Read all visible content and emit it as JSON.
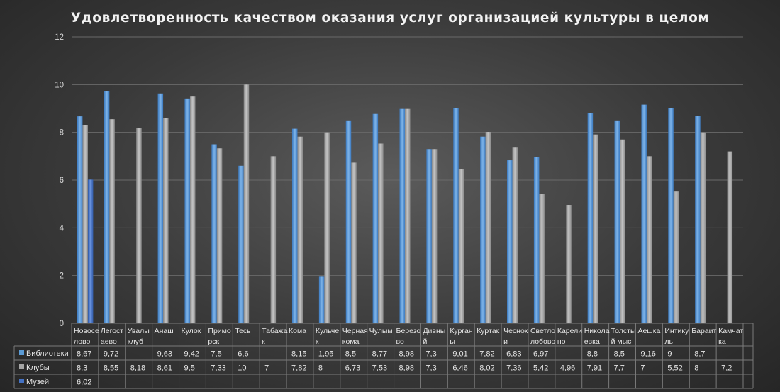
{
  "chart_data": {
    "type": "bar",
    "title": "Удовлетворенность качеством оказания услуг организацией культуры в целом",
    "ylim": [
      0,
      12
    ],
    "yticks": [
      0,
      2,
      4,
      6,
      8,
      10,
      12
    ],
    "grid": true,
    "legend": "data-table",
    "categories": [
      [
        "Новосе",
        "лово"
      ],
      [
        "Легост",
        "аево"
      ],
      [
        "Увалы",
        "клуб"
      ],
      [
        "Анаш"
      ],
      [
        "Кулок"
      ],
      [
        "Примо",
        "рск"
      ],
      [
        "Тесь"
      ],
      [
        "Табажа",
        "к"
      ],
      [
        "Кома"
      ],
      [
        "Кульче",
        "к"
      ],
      [
        "Черная",
        "кома"
      ],
      [
        "Чулым"
      ],
      [
        "Березо",
        "во"
      ],
      [
        "Дивны",
        "й"
      ],
      [
        "Курган",
        "ы"
      ],
      [
        "Куртак"
      ],
      [
        "Чеснок",
        "и"
      ],
      [
        "Светло",
        "лобово"
      ],
      [
        "Карели",
        "но"
      ],
      [
        "Никола",
        "евка"
      ],
      [
        "Толсты",
        "й мыс"
      ],
      [
        "Аешка"
      ],
      [
        "Интику",
        "ль"
      ],
      [
        "Бараит"
      ],
      [
        "Камчат",
        "ка"
      ]
    ],
    "series": [
      {
        "name": "Библиотеки",
        "color": "#5b9bd5",
        "values": [
          8.67,
          9.72,
          null,
          9.63,
          9.42,
          7.5,
          6.6,
          null,
          8.15,
          1.95,
          8.5,
          8.77,
          8.98,
          7.3,
          9.01,
          7.82,
          6.83,
          6.97,
          null,
          8.8,
          8.5,
          9.16,
          9,
          8.7,
          null
        ],
        "labels": [
          "8,67",
          "9,72",
          "",
          "9,63",
          "9,42",
          "7,5",
          "6,6",
          "",
          "8,15",
          "1,95",
          "8,5",
          "8,77",
          "8,98",
          "7,3",
          "9,01",
          "7,82",
          "6,83",
          "6,97",
          "",
          "8,8",
          "8,5",
          "9,16",
          "9",
          "8,7",
          ""
        ]
      },
      {
        "name": "Клубы",
        "color": "#a5a5a5",
        "values": [
          8.3,
          8.55,
          8.18,
          8.61,
          9.5,
          7.33,
          10,
          7,
          7.82,
          8,
          6.73,
          7.53,
          8.98,
          7.3,
          6.46,
          8.02,
          7.36,
          5.42,
          4.96,
          7.91,
          7.7,
          7,
          5.52,
          8,
          7.2
        ],
        "labels": [
          "8,3",
          "8,55",
          "8,18",
          "8,61",
          "9,5",
          "7,33",
          "10",
          "7",
          "7,82",
          "8",
          "6,73",
          "7,53",
          "8,98",
          "7,3",
          "6,46",
          "8,02",
          "7,36",
          "5,42",
          "4,96",
          "7,91",
          "7,7",
          "7",
          "5,52",
          "8",
          "7,2"
        ]
      },
      {
        "name": "Музей",
        "color": "#4472c4",
        "values": [
          6.02,
          null,
          null,
          null,
          null,
          null,
          null,
          null,
          null,
          null,
          null,
          null,
          null,
          null,
          null,
          null,
          null,
          null,
          null,
          null,
          null,
          null,
          null,
          null,
          null
        ],
        "labels": [
          "6,02",
          "",
          "",
          "",
          "",
          "",
          "",
          "",
          "",
          "",
          "",
          "",
          "",
          "",
          "",
          "",
          "",
          "",
          "",
          "",
          "",
          "",
          "",
          "",
          ""
        ]
      }
    ]
  }
}
